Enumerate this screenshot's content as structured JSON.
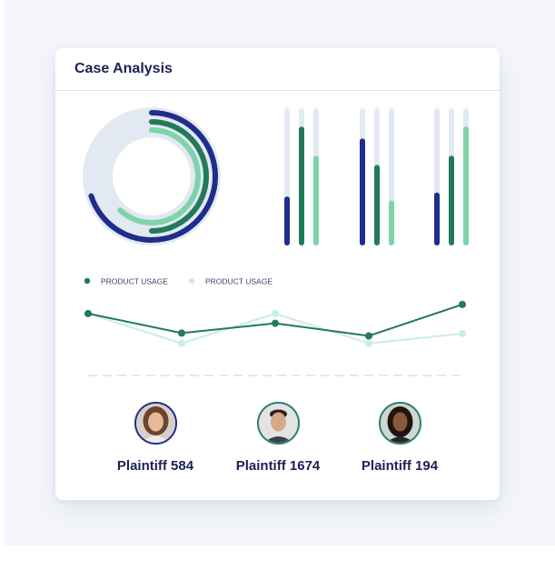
{
  "card": {
    "title": "Case Analysis"
  },
  "colors": {
    "navy": "#1f2d8c",
    "green": "#237a5a",
    "light_green": "#7ed3ac",
    "track": "#e3e9f2",
    "pale_green": "#c9efe0"
  },
  "chart_data": [
    {
      "type": "radial-bar",
      "series": [
        {
          "color": "navy",
          "fraction": 0.7
        },
        {
          "color": "green",
          "fraction": 0.5
        },
        {
          "color": "light_green",
          "fraction": 0.62
        }
      ]
    },
    {
      "type": "bar",
      "groups": 3,
      "series": [
        {
          "color": "navy",
          "values": [
            0.33,
            0.77,
            0.36
          ]
        },
        {
          "color": "green",
          "values": [
            0.86,
            0.57,
            0.64
          ]
        },
        {
          "color": "light_green",
          "values": [
            0.64,
            0.3,
            0.86
          ]
        }
      ],
      "ylim": [
        0,
        1
      ]
    },
    {
      "type": "line",
      "legend": [
        "PRODUCT USAGE",
        "PRODUCT USAGE"
      ],
      "legend_placement": "top-left",
      "series": [
        {
          "name": "PRODUCT USAGE",
          "color": "green",
          "values": [
            0.62,
            0.28,
            0.45,
            0.23,
            0.78
          ]
        },
        {
          "name": "PRODUCT USAGE",
          "color": "pale_green",
          "values": [
            0.62,
            0.1,
            0.62,
            0.1,
            0.27
          ]
        }
      ],
      "ylim": [
        0,
        1
      ]
    }
  ],
  "people": [
    {
      "name": "Plaintiff 584",
      "avatar": "woman-avatar",
      "ring": "navy"
    },
    {
      "name": "Plaintiff 1674",
      "avatar": "man-avatar",
      "ring": "green"
    },
    {
      "name": "Plaintiff 194",
      "avatar": "woman-avatar",
      "ring": "green"
    }
  ]
}
